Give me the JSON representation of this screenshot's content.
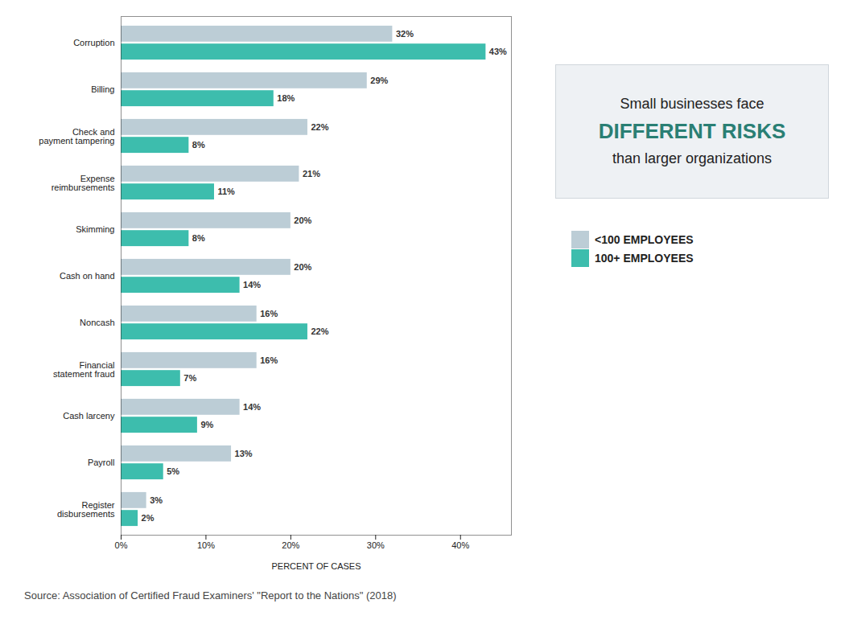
{
  "chart_data": {
    "type": "bar",
    "orientation": "horizontal",
    "categories": [
      "Corruption",
      "Billing",
      "Check and\npayment tampering",
      "Expense\nreimbursements",
      "Skimming",
      "Cash on hand",
      "Noncash",
      "Financial\nstatement fraud",
      "Cash larceny",
      "Payroll",
      "Register\ndisbursements"
    ],
    "series": [
      {
        "name": "<100 EMPLOYEES",
        "color": "#bccdd6",
        "values": [
          32,
          29,
          22,
          21,
          20,
          20,
          16,
          16,
          14,
          13,
          3
        ],
        "value_labels": [
          "32%",
          "29%",
          "22%",
          "21%",
          "20%",
          "20%",
          "16%",
          "16%",
          "14%",
          "13%",
          "3%"
        ]
      },
      {
        "name": "100+ EMPLOYEES",
        "color": "#3dbdad",
        "values": [
          43,
          18,
          8,
          11,
          8,
          14,
          22,
          7,
          9,
          5,
          2
        ],
        "value_labels": [
          "43%",
          "18%",
          "8%",
          "11%",
          "8%",
          "14%",
          "22%",
          "7%",
          "9%",
          "5%",
          "2%"
        ]
      }
    ],
    "xlabel": "PERCENT OF CASES",
    "xlim": [
      0,
      46
    ],
    "xticks": [
      {
        "value": 0,
        "label": "0%"
      },
      {
        "value": 10,
        "label": "10%"
      },
      {
        "value": 20,
        "label": "20%"
      },
      {
        "value": 30,
        "label": "30%"
      },
      {
        "value": 40,
        "label": "40%"
      }
    ],
    "data_labels": true,
    "grid": false,
    "legend": "right",
    "annotations": [
      "Small businesses face",
      "DIFFERENT RISKS",
      "than larger organizations"
    ],
    "caption": "Source: Association of Certified Fraud Examiners' \"Report to the Nations\" (2018)"
  }
}
